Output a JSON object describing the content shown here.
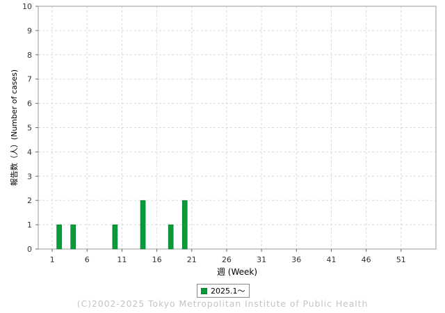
{
  "chart_data": {
    "type": "bar",
    "title": "",
    "xlabel": "週 (Week)",
    "ylabel": "報告数（人）(Number of cases)",
    "xlim": [
      -1,
      56
    ],
    "ylim": [
      0,
      10
    ],
    "x_ticks": [
      1,
      6,
      11,
      16,
      21,
      26,
      31,
      36,
      41,
      46,
      51
    ],
    "y_ticks": [
      0,
      1,
      2,
      3,
      4,
      5,
      6,
      7,
      8,
      9,
      10
    ],
    "grid": true,
    "legend_position": "bottom-center",
    "series": [
      {
        "name": "2025.1〜",
        "color": "#0a9a3a",
        "points": [
          {
            "week": 2,
            "value": 1
          },
          {
            "week": 4,
            "value": 1
          },
          {
            "week": 10,
            "value": 1
          },
          {
            "week": 14,
            "value": 2
          },
          {
            "week": 18,
            "value": 1
          },
          {
            "week": 20,
            "value": 2
          }
        ]
      }
    ]
  },
  "copyright": "(C)2002-2025 Tokyo Metropolitan Institute of Public Health"
}
